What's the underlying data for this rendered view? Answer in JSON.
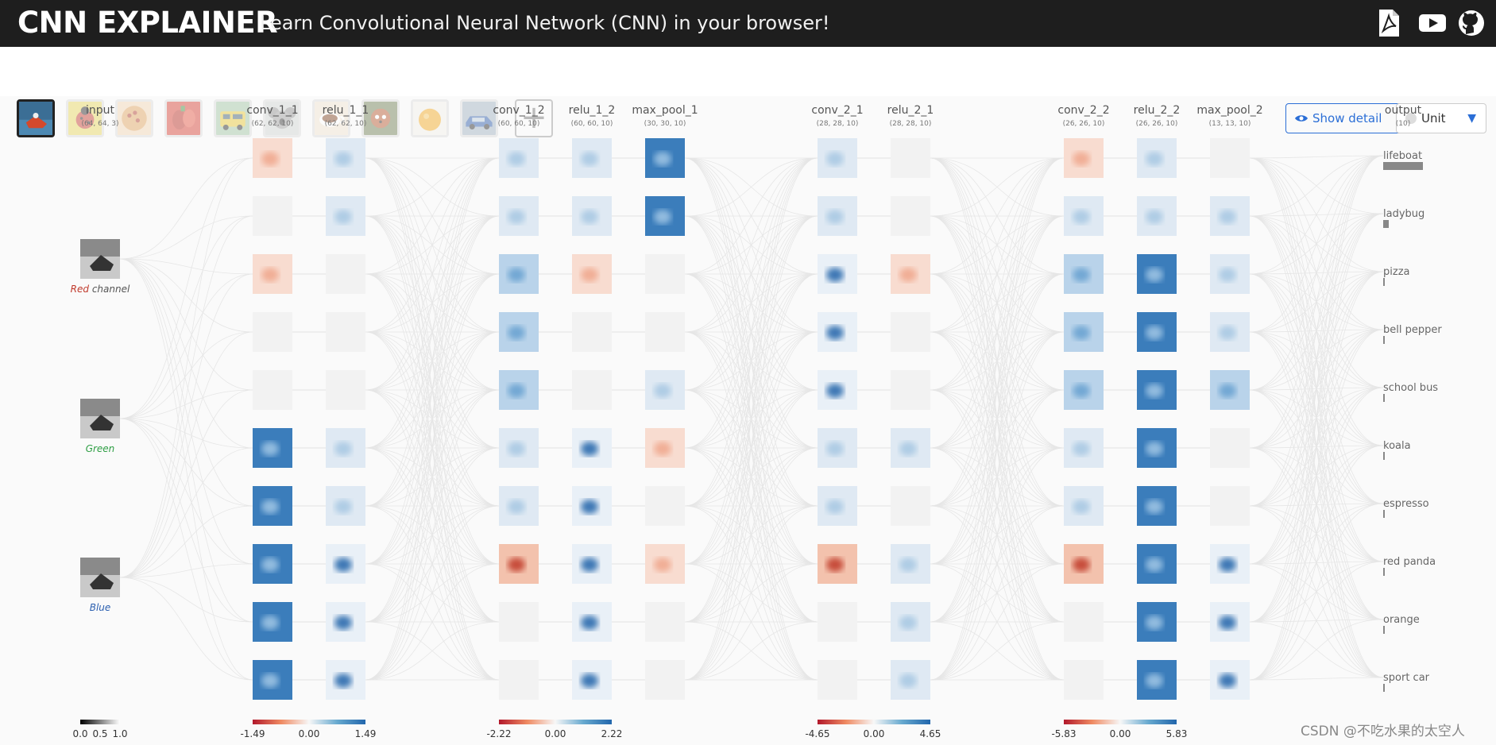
{
  "header": {
    "title": "CNN EXPLAINER",
    "tagline": "Learn Convolutional Neural Network (CNN) in your browser!",
    "icons": [
      "paper-icon",
      "video-icon",
      "github-icon"
    ]
  },
  "toolbar": {
    "images": [
      {
        "name": "boat",
        "selected": true
      },
      {
        "name": "ladybug",
        "selected": false
      },
      {
        "name": "pizza",
        "selected": false
      },
      {
        "name": "bell-pepper",
        "selected": false
      },
      {
        "name": "bus",
        "selected": false
      },
      {
        "name": "koala",
        "selected": false
      },
      {
        "name": "espresso",
        "selected": false
      },
      {
        "name": "panda",
        "selected": false
      },
      {
        "name": "orange",
        "selected": false
      },
      {
        "name": "car",
        "selected": false
      }
    ],
    "add_label": "+",
    "show_detail_label": "Show detail",
    "unit_label": "Unit"
  },
  "input": {
    "name": "input",
    "dims": "(64, 64, 3)",
    "channels": [
      {
        "prefix": "Red",
        "suffix": " channel",
        "color": "#c0392b"
      },
      {
        "prefix": "",
        "suffix": "Green",
        "color": "#2e9e44"
      },
      {
        "prefix": "",
        "suffix": "Blue",
        "color": "#2b5fb0"
      }
    ],
    "scale": [
      "0.0",
      "0.5",
      "1.0"
    ]
  },
  "groups": [
    {
      "layers": [
        {
          "name": "conv_1_1",
          "dims": "(62, 62, 10)"
        },
        {
          "name": "relu_1_1",
          "dims": "(62, 62, 10)"
        }
      ],
      "scale": [
        "-1.49",
        "0.00",
        "1.49"
      ]
    },
    {
      "layers": [
        {
          "name": "conv_1_2",
          "dims": "(60, 60, 10)"
        },
        {
          "name": "relu_1_2",
          "dims": "(60, 60, 10)"
        },
        {
          "name": "max_pool_1",
          "dims": "(30, 30, 10)"
        }
      ],
      "scale": [
        "-2.22",
        "0.00",
        "2.22"
      ]
    },
    {
      "layers": [
        {
          "name": "conv_2_1",
          "dims": "(28, 28, 10)"
        },
        {
          "name": "relu_2_1",
          "dims": "(28, 28, 10)"
        }
      ],
      "scale": [
        "-4.65",
        "0.00",
        "4.65"
      ]
    },
    {
      "layers": [
        {
          "name": "conv_2_2",
          "dims": "(26, 26, 10)"
        },
        {
          "name": "relu_2_2",
          "dims": "(26, 26, 10)"
        },
        {
          "name": "max_pool_2",
          "dims": "(13, 13, 10)"
        }
      ],
      "scale": [
        "-5.83",
        "0.00",
        "5.83"
      ]
    }
  ],
  "output": {
    "name": "output",
    "dims": "(10)",
    "classes": [
      {
        "label": "lifeboat",
        "prob": 1.0
      },
      {
        "label": "ladybug",
        "prob": 0.14
      },
      {
        "label": "pizza",
        "prob": 0.0
      },
      {
        "label": "bell pepper",
        "prob": 0.0
      },
      {
        "label": "school bus",
        "prob": 0.02
      },
      {
        "label": "koala",
        "prob": 0.0
      },
      {
        "label": "espresso",
        "prob": 0.02
      },
      {
        "label": "red panda",
        "prob": 0.0
      },
      {
        "label": "orange",
        "prob": 0.02
      },
      {
        "label": "sport car",
        "prob": 0.0
      }
    ]
  },
  "watermark": "CSDN @不吃水果的太空人",
  "colors": {
    "header_bg": "#1e1e1e",
    "accent": "#2b6ed6",
    "positive": "#2166ac",
    "negative": "#b2182b"
  }
}
